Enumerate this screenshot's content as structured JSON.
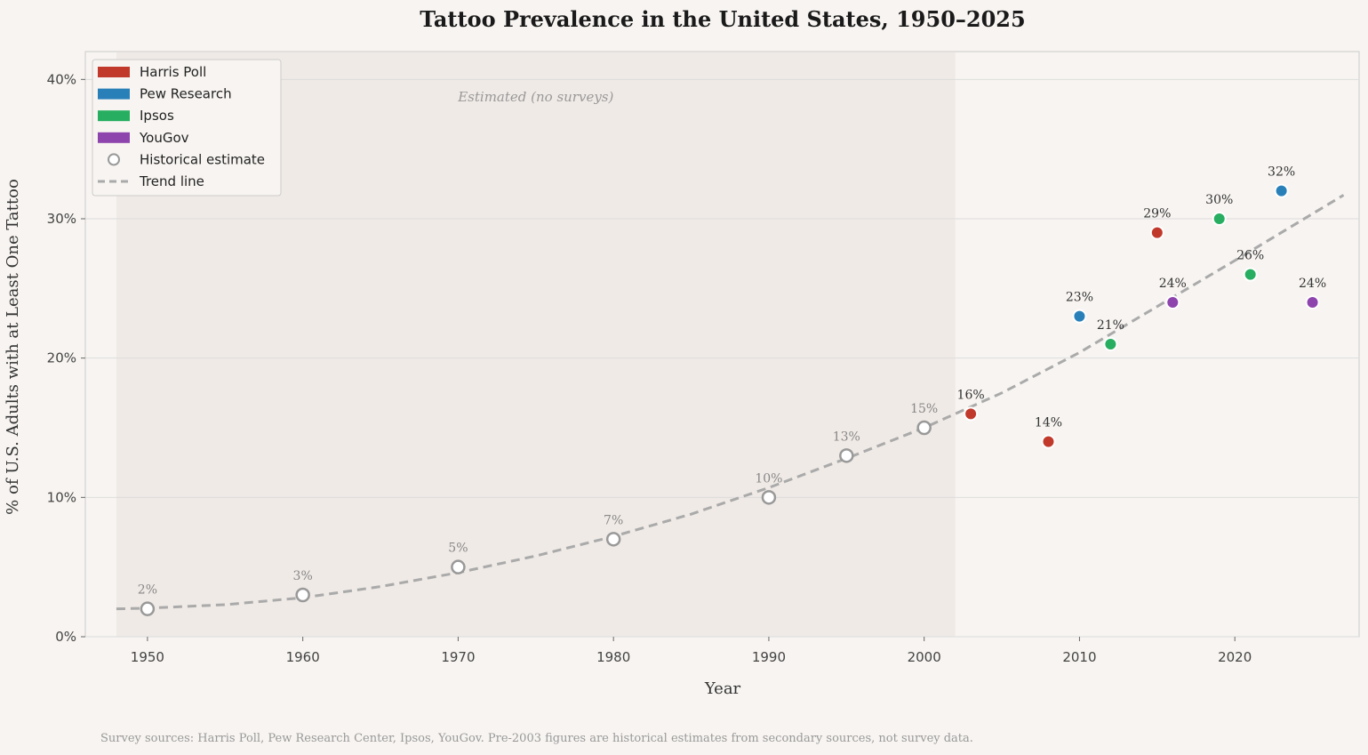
{
  "chart_data": {
    "type": "scatter",
    "title": "Tattoo Prevalence in the United States, 1950–2025",
    "xlabel": "Year",
    "ylabel": "% of U.S. Adults with at Least One Tattoo",
    "xlim": [
      1946,
      2028
    ],
    "ylim": [
      0,
      42
    ],
    "xticks": [
      1950,
      1960,
      1970,
      1980,
      1990,
      2000,
      2010,
      2020
    ],
    "yticks": [
      0,
      10,
      20,
      30,
      40
    ],
    "ytick_labels": [
      "0%",
      "10%",
      "20%",
      "30%",
      "40%"
    ],
    "grid": "horizontal",
    "legend_position": "top-left",
    "shaded_region": {
      "x": [
        1948,
        2002
      ],
      "label": "Estimated (no surveys)"
    },
    "colors": {
      "Harris Poll": "#c0392b",
      "Pew Research": "#2980b9",
      "Ipsos": "#27ae60",
      "YouGov": "#8e44ad",
      "Historical estimate": "#999999",
      "Trend line": "#aaaaaa"
    },
    "legend": [
      "Harris Poll",
      "Pew Research",
      "Ipsos",
      "YouGov",
      "Historical estimate",
      "Trend line"
    ],
    "historical": [
      {
        "x": 1950,
        "y": 2,
        "label": "2%"
      },
      {
        "x": 1960,
        "y": 3,
        "label": "3%"
      },
      {
        "x": 1970,
        "y": 5,
        "label": "5%"
      },
      {
        "x": 1980,
        "y": 7,
        "label": "7%"
      },
      {
        "x": 1990,
        "y": 10,
        "label": "10%"
      },
      {
        "x": 1995,
        "y": 13,
        "label": "13%"
      },
      {
        "x": 2000,
        "y": 15,
        "label": "15%"
      }
    ],
    "series": [
      {
        "name": "Harris Poll",
        "points": [
          {
            "x": 2003,
            "y": 16,
            "label": "16%"
          },
          {
            "x": 2008,
            "y": 14,
            "label": "14%"
          },
          {
            "x": 2015,
            "y": 29,
            "label": "29%"
          }
        ]
      },
      {
        "name": "Pew Research",
        "points": [
          {
            "x": 2010,
            "y": 23,
            "label": "23%"
          },
          {
            "x": 2023,
            "y": 32,
            "label": "32%"
          }
        ]
      },
      {
        "name": "Ipsos",
        "points": [
          {
            "x": 2012,
            "y": 21,
            "label": "21%"
          },
          {
            "x": 2019,
            "y": 30,
            "label": "30%"
          },
          {
            "x": 2021,
            "y": 26,
            "label": "26%"
          }
        ]
      },
      {
        "name": "YouGov",
        "points": [
          {
            "x": 2016,
            "y": 24,
            "label": "24%"
          },
          {
            "x": 2025,
            "y": 24,
            "label": "24%"
          }
        ]
      }
    ],
    "trend": [
      [
        1948,
        2.0
      ],
      [
        1950,
        2.05
      ],
      [
        1955,
        2.3
      ],
      [
        1960,
        2.8
      ],
      [
        1965,
        3.6
      ],
      [
        1970,
        4.6
      ],
      [
        1975,
        5.8
      ],
      [
        1980,
        7.2
      ],
      [
        1985,
        8.8
      ],
      [
        1990,
        10.7
      ],
      [
        1995,
        12.8
      ],
      [
        2000,
        15.0
      ],
      [
        2005,
        17.5
      ],
      [
        2010,
        20.4
      ],
      [
        2015,
        23.7
      ],
      [
        2020,
        27.0
      ],
      [
        2027,
        31.7
      ]
    ],
    "footnote": "Survey sources: Harris Poll, Pew Research Center, Ipsos, YouGov. Pre-2003 figures are historical estimates from secondary sources, not survey data."
  }
}
